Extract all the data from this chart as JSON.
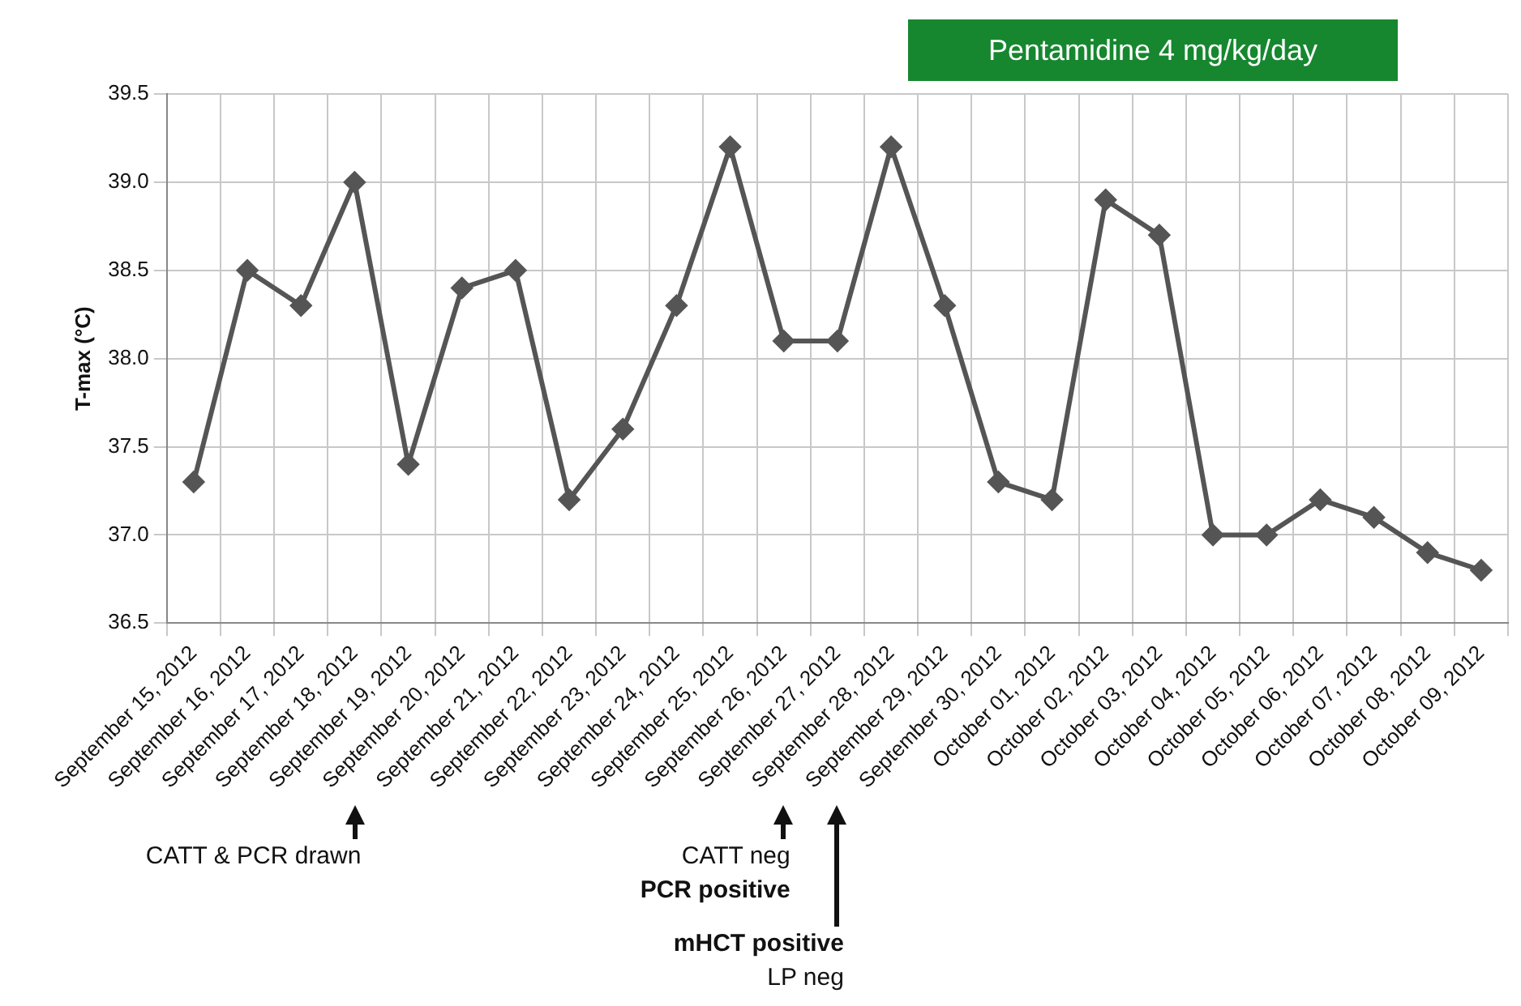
{
  "chart_data": {
    "type": "line",
    "ylabel": "T-max (°C)",
    "categories": [
      "September 15, 2012",
      "September 16, 2012",
      "September 17, 2012",
      "September 18, 2012",
      "September 19, 2012",
      "September 20, 2012",
      "September 21, 2012",
      "September 22, 2012",
      "September 23, 2012",
      "September 24, 2012",
      "September 25, 2012",
      "September 26, 2012",
      "September 27, 2012",
      "September 28, 2012",
      "September 29, 2012",
      "September 30, 2012",
      "October 01, 2012",
      "October 02, 2012",
      "October 03, 2012",
      "October 04, 2012",
      "October 05, 2012",
      "October 06, 2012",
      "October 07, 2012",
      "October 08, 2012",
      "October 09, 2012"
    ],
    "series": [
      {
        "color": "#555555",
        "values": [
          37.3,
          38.5,
          38.3,
          39.0,
          37.4,
          38.4,
          38.5,
          37.2,
          37.6,
          38.3,
          39.2,
          38.1,
          38.1,
          39.2,
          38.3,
          37.3,
          37.2,
          38.9,
          38.7,
          37.0,
          37.0,
          37.2,
          37.1,
          36.9,
          36.8
        ]
      }
    ],
    "ylim": [
      36.5,
      39.5
    ],
    "yticks": [
      36.5,
      {
        "value": 37,
        "label": "37.0"
      },
      37.5,
      {
        "value": 38,
        "label": "38.0"
      },
      38.5,
      {
        "value": 39,
        "label": "39.0"
      },
      39.5
    ],
    "grid": true,
    "legend": false,
    "marker": "diamond",
    "line_style": "solid",
    "annotations": [
      "Pentamidine 4 mg/kg/day",
      "CATT & PCR drawn",
      "CATT neg",
      "PCR positive",
      "mHCT positive",
      "LP neg"
    ]
  }
}
